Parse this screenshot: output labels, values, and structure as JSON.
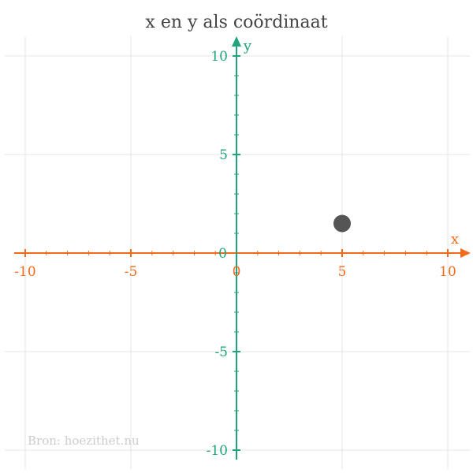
{
  "chart_data": {
    "type": "scatter",
    "title": "x en y als coördinaat",
    "xlabel": "x",
    "ylabel": "y",
    "xlim": [
      -10,
      10
    ],
    "ylim": [
      -10,
      10
    ],
    "xticks": [
      -10,
      -5,
      0,
      5,
      10
    ],
    "yticks": [
      -10,
      -5,
      0,
      5,
      10
    ],
    "grid": true,
    "points": [
      {
        "x": 5,
        "y": 1.5
      }
    ],
    "source": "Bron: hoezithet.nu"
  },
  "colors": {
    "x_axis": "#f26b1d",
    "y_axis": "#1fa37a",
    "grid": "#e6e6e6",
    "point": "#555555",
    "title": "#444444",
    "source": "#cccccc"
  }
}
